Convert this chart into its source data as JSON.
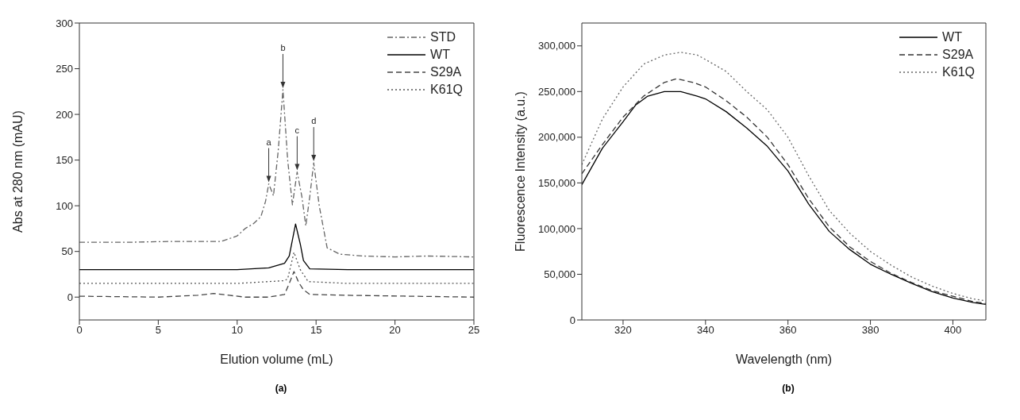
{
  "chart_data": [
    {
      "type": "line",
      "xlabel": "Elution volume (mL)",
      "ylabel": "Abs at 280 nm (mAU)",
      "xlim": [
        0,
        25
      ],
      "ylim": [
        -25,
        300
      ],
      "xticks": [
        0,
        5,
        10,
        15,
        20,
        25
      ],
      "yticks": [
        0,
        50,
        100,
        150,
        200,
        250,
        300
      ],
      "legend": "top right",
      "marker": "none",
      "series": [
        {
          "name": "STD",
          "color": "#666666",
          "line_style": "dashdot",
          "x": [
            0,
            3,
            6,
            9,
            10,
            10.5,
            11,
            11.5,
            11.8,
            12,
            12.3,
            12.6,
            12.9,
            13.2,
            13.5,
            13.8,
            14.1,
            14.35,
            14.6,
            14.85,
            15.2,
            15.7,
            16.5,
            18,
            20,
            22,
            25
          ],
          "values": [
            60,
            60,
            61,
            61,
            67,
            75,
            80,
            88,
            105,
            124,
            111,
            160,
            227,
            150,
            101,
            137,
            110,
            78,
            110,
            147,
            100,
            54,
            47,
            45,
            44,
            45,
            44
          ]
        },
        {
          "name": "WT",
          "color": "#000000",
          "line_style": "solid",
          "x": [
            0,
            10,
            12,
            13,
            13.3,
            13.7,
            14.0,
            14.2,
            14.6,
            17,
            25
          ],
          "values": [
            30,
            30,
            32,
            37,
            45,
            80,
            58,
            40,
            31,
            30,
            30
          ]
        },
        {
          "name": "S29A",
          "color": "#444444",
          "line_style": "dashed",
          "x": [
            0,
            5,
            7.5,
            8.5,
            9.5,
            10.5,
            12,
            13,
            13.3,
            13.6,
            13.9,
            14.2,
            14.6,
            17,
            25
          ],
          "values": [
            1,
            0,
            2,
            4,
            2,
            0,
            0,
            3,
            15,
            28,
            16,
            8,
            3,
            2,
            0
          ]
        },
        {
          "name": "K61Q",
          "color": "#555555",
          "line_style": "dotted",
          "x": [
            0,
            10,
            13,
            13.2,
            13.6,
            14.0,
            14.5,
            17,
            25
          ],
          "values": [
            15,
            15,
            18,
            20,
            49,
            30,
            17,
            15,
            15
          ]
        }
      ],
      "annotations": [
        {
          "text": "a",
          "x": 12,
          "y": 124
        },
        {
          "text": "b",
          "x": 12.9,
          "y": 227
        },
        {
          "text": "c",
          "x": 13.8,
          "y": 137
        },
        {
          "text": "d",
          "x": 14.85,
          "y": 147
        },
        "(a)"
      ]
    },
    {
      "type": "line",
      "xlabel": "Wavelength (nm)",
      "ylabel": "Fluorescence Intensity (a.u.)",
      "xlim": [
        310,
        408
      ],
      "ylim": [
        0,
        325000
      ],
      "xticks": [
        320,
        340,
        360,
        380,
        400
      ],
      "yticks": [
        0,
        {
          "value": 50000,
          "label": "50,000"
        },
        {
          "value": 100000,
          "label": "100,000"
        },
        {
          "value": 150000,
          "label": "150,000"
        },
        {
          "value": 200000,
          "label": "200,000"
        },
        {
          "value": 250000,
          "label": "250,000"
        },
        {
          "value": 300000,
          "label": "300,000"
        }
      ],
      "legend": "top right",
      "marker": "none",
      "series": [
        {
          "name": "WT",
          "color": "#000000",
          "line_style": "solid",
          "x": [
            310,
            315,
            320,
            323,
            326,
            330,
            334,
            338,
            340,
            345,
            350,
            355,
            360,
            365,
            370,
            375,
            380,
            385,
            390,
            395,
            400,
            405,
            408
          ],
          "values": [
            148000,
            188000,
            217000,
            235000,
            245000,
            250000,
            250000,
            245000,
            242000,
            228000,
            210000,
            190000,
            163000,
            127000,
            97000,
            77000,
            61000,
            50000,
            40000,
            31000,
            24000,
            19000,
            17000
          ]
        },
        {
          "name": "S29A",
          "color": "#333333",
          "line_style": "dashed",
          "x": [
            310,
            315,
            320,
            325,
            330,
            333,
            337,
            340,
            345,
            350,
            355,
            360,
            365,
            370,
            375,
            380,
            385,
            390,
            395,
            400,
            405,
            408
          ],
          "values": [
            160000,
            192000,
            222000,
            245000,
            260000,
            264000,
            260000,
            255000,
            240000,
            222000,
            200000,
            170000,
            133000,
            102000,
            80000,
            64000,
            51000,
            41000,
            32000,
            26000,
            20000,
            18000
          ]
        },
        {
          "name": "K61Q",
          "color": "#666666",
          "line_style": "dotted",
          "x": [
            310,
            315,
            320,
            325,
            330,
            334,
            338,
            340,
            345,
            350,
            355,
            360,
            365,
            370,
            375,
            380,
            385,
            390,
            395,
            400,
            405,
            408
          ],
          "values": [
            170000,
            220000,
            255000,
            280000,
            290000,
            293000,
            290000,
            285000,
            272000,
            250000,
            230000,
            200000,
            158000,
            120000,
            95000,
            75000,
            60000,
            47000,
            37000,
            29000,
            23000,
            21000
          ]
        }
      ],
      "annotations": [
        "(b)"
      ]
    }
  ]
}
